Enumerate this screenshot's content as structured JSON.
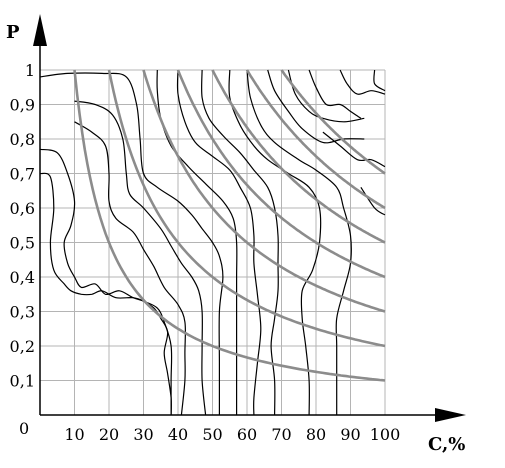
{
  "chart_data": {
    "type": "line",
    "xlabel": "C,%",
    "ylabel": "P",
    "origin_label": "0",
    "xlim": [
      0,
      100
    ],
    "ylim": [
      0,
      1
    ],
    "grid": true,
    "x_ticks": [
      "10",
      "20",
      "30",
      "40",
      "50",
      "60",
      "70",
      "80",
      "90",
      "100"
    ],
    "y_ticks": [
      "0,1",
      "0,2",
      "0,3",
      "0,4",
      "0,5",
      "0,6",
      "0,7",
      "0,8",
      "0,9",
      "1"
    ],
    "colors": {
      "curve": "#8c8c8c",
      "contour": "#000000",
      "grid": "#b4b4b4",
      "axis": "#000000"
    },
    "series": [
      {
        "k": 10
      },
      {
        "k": 20
      },
      {
        "k": 30
      },
      {
        "k": 40
      },
      {
        "k": 50
      },
      {
        "k": 60
      },
      {
        "k": 70
      }
    ],
    "contours": [
      [
        [
          0,
          0.77
        ],
        [
          5,
          0.76
        ],
        [
          8,
          0.7
        ],
        [
          10,
          0.62
        ],
        [
          9,
          0.55
        ],
        [
          7,
          0.5
        ],
        [
          8,
          0.44
        ],
        [
          10,
          0.4
        ],
        [
          12,
          0.37
        ],
        [
          16,
          0.38
        ],
        [
          19,
          0.35
        ],
        [
          23,
          0.36
        ],
        [
          27,
          0.34
        ],
        [
          30,
          0.33
        ],
        [
          34,
          0.31
        ],
        [
          36,
          0.27
        ],
        [
          38,
          0.2
        ],
        [
          38,
          0.1
        ],
        [
          38,
          0
        ]
      ],
      [
        [
          0,
          0.7
        ],
        [
          3,
          0.69
        ],
        [
          4,
          0.6
        ],
        [
          3,
          0.5
        ],
        [
          4,
          0.42
        ],
        [
          7,
          0.38
        ],
        [
          9,
          0.36
        ],
        [
          12,
          0.35
        ],
        [
          15,
          0.35
        ],
        [
          18,
          0.36
        ],
        [
          22,
          0.34
        ],
        [
          27,
          0.34
        ],
        [
          30,
          0.33
        ],
        [
          33,
          0.31
        ],
        [
          35,
          0.28
        ],
        [
          37,
          0.24
        ],
        [
          36,
          0.18
        ],
        [
          37,
          0.12
        ],
        [
          38,
          0.05
        ],
        [
          38,
          0
        ]
      ],
      [
        [
          10,
          0.85
        ],
        [
          15,
          0.82
        ],
        [
          19,
          0.78
        ],
        [
          20,
          0.7
        ],
        [
          20,
          0.62
        ],
        [
          22,
          0.57
        ],
        [
          27,
          0.53
        ],
        [
          30,
          0.48
        ],
        [
          33,
          0.43
        ],
        [
          36,
          0.37
        ],
        [
          40,
          0.32
        ],
        [
          42,
          0.27
        ],
        [
          42,
          0.18
        ],
        [
          42,
          0.1
        ],
        [
          41,
          0
        ]
      ],
      [
        [
          10,
          0.91
        ],
        [
          16,
          0.9
        ],
        [
          21,
          0.87
        ],
        [
          24,
          0.8
        ],
        [
          25,
          0.7
        ],
        [
          26,
          0.64
        ],
        [
          30,
          0.6
        ],
        [
          35,
          0.54
        ],
        [
          38,
          0.49
        ],
        [
          41,
          0.44
        ],
        [
          44,
          0.4
        ],
        [
          46,
          0.36
        ],
        [
          47,
          0.3
        ],
        [
          47,
          0.2
        ],
        [
          47,
          0.1
        ],
        [
          48,
          0
        ]
      ],
      [
        [
          0,
          0.98
        ],
        [
          8,
          0.99
        ],
        [
          18,
          0.99
        ],
        [
          25,
          0.98
        ],
        [
          28,
          0.9
        ],
        [
          29,
          0.8
        ],
        [
          30,
          0.7
        ],
        [
          34,
          0.66
        ],
        [
          40,
          0.62
        ],
        [
          44,
          0.58
        ],
        [
          47,
          0.54
        ],
        [
          50,
          0.5
        ],
        [
          52,
          0.46
        ],
        [
          53,
          0.4
        ],
        [
          52,
          0.3
        ],
        [
          52,
          0.15
        ],
        [
          52,
          0
        ]
      ],
      [
        [
          34,
          1
        ],
        [
          34,
          0.94
        ],
        [
          35,
          0.86
        ],
        [
          38,
          0.78
        ],
        [
          43,
          0.72
        ],
        [
          48,
          0.67
        ],
        [
          53,
          0.62
        ],
        [
          56,
          0.57
        ],
        [
          57,
          0.5
        ],
        [
          57,
          0.4
        ],
        [
          57,
          0.3
        ],
        [
          57,
          0.2
        ],
        [
          57,
          0.1
        ],
        [
          57,
          0
        ]
      ],
      [
        [
          40,
          1
        ],
        [
          40,
          0.93
        ],
        [
          42,
          0.85
        ],
        [
          45,
          0.79
        ],
        [
          50,
          0.75
        ],
        [
          55,
          0.71
        ],
        [
          58,
          0.66
        ],
        [
          61,
          0.6
        ],
        [
          62,
          0.52
        ],
        [
          62,
          0.44
        ],
        [
          63,
          0.35
        ],
        [
          64,
          0.25
        ],
        [
          63,
          0.15
        ],
        [
          62,
          0.05
        ],
        [
          62,
          0
        ]
      ],
      [
        [
          47,
          1
        ],
        [
          47,
          0.92
        ],
        [
          49,
          0.86
        ],
        [
          53,
          0.81
        ],
        [
          58,
          0.76
        ],
        [
          62,
          0.71
        ],
        [
          66,
          0.66
        ],
        [
          68,
          0.6
        ],
        [
          69,
          0.52
        ],
        [
          69,
          0.44
        ],
        [
          69,
          0.36
        ],
        [
          68,
          0.28
        ],
        [
          67,
          0.2
        ],
        [
          68,
          0.1
        ],
        [
          68,
          0
        ]
      ],
      [
        [
          55,
          1
        ],
        [
          55,
          0.92
        ],
        [
          58,
          0.84
        ],
        [
          62,
          0.78
        ],
        [
          66,
          0.74
        ],
        [
          72,
          0.7
        ],
        [
          78,
          0.66
        ],
        [
          81,
          0.6
        ],
        [
          81,
          0.5
        ],
        [
          79,
          0.42
        ],
        [
          76,
          0.36
        ],
        [
          76,
          0.28
        ],
        [
          77,
          0.2
        ],
        [
          78,
          0.1
        ],
        [
          78,
          0
        ]
      ],
      [
        [
          60,
          1
        ],
        [
          61,
          0.92
        ],
        [
          64,
          0.84
        ],
        [
          68,
          0.79
        ],
        [
          75,
          0.74
        ],
        [
          80,
          0.71
        ],
        [
          86,
          0.66
        ],
        [
          88,
          0.6
        ],
        [
          90,
          0.52
        ],
        [
          90,
          0.44
        ],
        [
          88,
          0.36
        ],
        [
          86,
          0.28
        ],
        [
          86,
          0.2
        ],
        [
          86,
          0.1
        ],
        [
          86,
          0
        ]
      ],
      [
        [
          66,
          1
        ],
        [
          68,
          0.94
        ],
        [
          72,
          0.88
        ],
        [
          76,
          0.83
        ],
        [
          82,
          0.79
        ],
        [
          88,
          0.8
        ],
        [
          94,
          0.8
        ]
      ],
      [
        [
          72,
          1
        ],
        [
          74,
          0.93
        ],
        [
          78,
          0.88
        ],
        [
          82,
          0.86
        ],
        [
          88,
          0.85
        ],
        [
          94,
          0.86
        ]
      ],
      [
        [
          78,
          1
        ],
        [
          80,
          0.95
        ],
        [
          83,
          0.9
        ],
        [
          87,
          0.9
        ],
        [
          90,
          0.88
        ],
        [
          93,
          0.86
        ]
      ],
      [
        [
          87,
          1
        ],
        [
          89,
          0.96
        ],
        [
          92,
          0.93
        ],
        [
          96,
          0.94
        ],
        [
          100,
          0.93
        ]
      ],
      [
        [
          97,
          1
        ],
        [
          97,
          0.96
        ],
        [
          100,
          0.94
        ]
      ],
      [
        [
          82,
          0.82
        ],
        [
          87,
          0.78
        ],
        [
          92,
          0.74
        ],
        [
          96,
          0.74
        ],
        [
          100,
          0.72
        ]
      ],
      [
        [
          93,
          0.66
        ],
        [
          97,
          0.6
        ],
        [
          100,
          0.58
        ]
      ]
    ]
  }
}
